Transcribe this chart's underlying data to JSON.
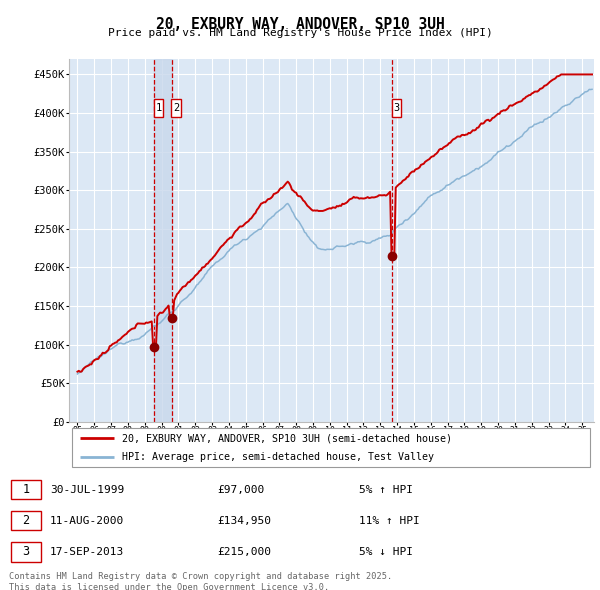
{
  "title": "20, EXBURY WAY, ANDOVER, SP10 3UH",
  "subtitle": "Price paid vs. HM Land Registry's House Price Index (HPI)",
  "hpi_label": "HPI: Average price, semi-detached house, Test Valley",
  "property_label": "20, EXBURY WAY, ANDOVER, SP10 3UH (semi-detached house)",
  "transactions": [
    {
      "num": 1,
      "date": "30-JUL-1999",
      "price": 97000,
      "pct": "5%",
      "dir": "↑",
      "x_year": 1999.58
    },
    {
      "num": 2,
      "date": "11-AUG-2000",
      "price": 134950,
      "pct": "11%",
      "dir": "↑",
      "x_year": 2000.62
    },
    {
      "num": 3,
      "date": "17-SEP-2013",
      "price": 215000,
      "pct": "5%",
      "dir": "↓",
      "x_year": 2013.71
    }
  ],
  "ylim": [
    0,
    470000
  ],
  "xlim_start": 1994.5,
  "xlim_end": 2025.7,
  "plot_bg_color": "#dce8f5",
  "grid_color": "#ffffff",
  "hpi_color": "#8ab4d4",
  "property_color": "#cc0000",
  "vline_color": "#cc0000",
  "vline_shade_color": "#c8d8ec",
  "footnote": "Contains HM Land Registry data © Crown copyright and database right 2025.\nThis data is licensed under the Open Government Licence v3.0.",
  "yticks": [
    0,
    50000,
    100000,
    150000,
    200000,
    250000,
    300000,
    350000,
    400000,
    450000
  ],
  "ytick_labels": [
    "£0",
    "£50K",
    "£100K",
    "£150K",
    "£200K",
    "£250K",
    "£300K",
    "£350K",
    "£400K",
    "£450K"
  ]
}
